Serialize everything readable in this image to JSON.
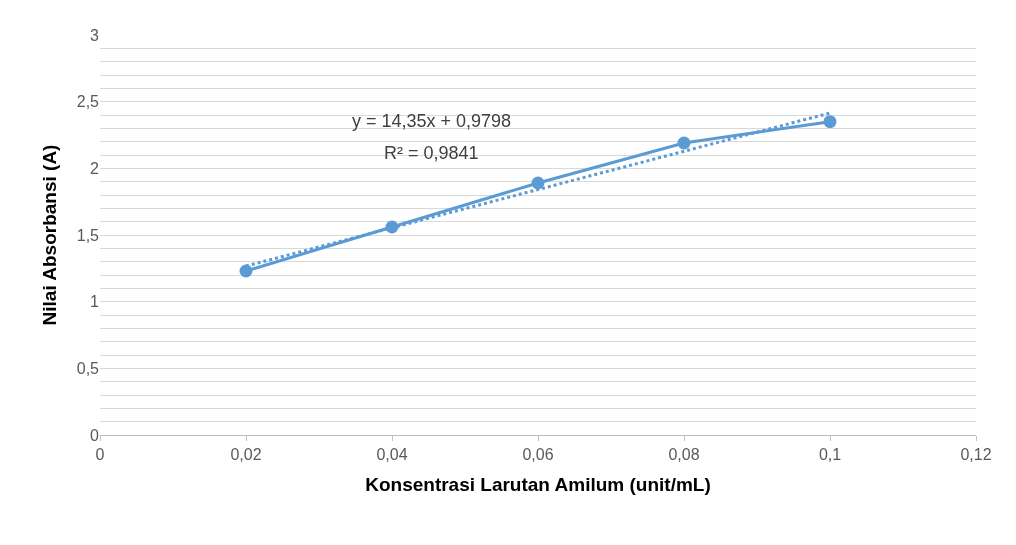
{
  "chart_data": {
    "type": "line",
    "xlabel": "Konsentrasi Larutan Amilum (unit/mL)",
    "ylabel": "Nilai Absorbansi (A)",
    "x": [
      0.02,
      0.04,
      0.06,
      0.08,
      0.1
    ],
    "series": [
      {
        "color": "#5b9bd5",
        "values": [
          1.23,
          1.56,
          1.89,
          2.19,
          2.35
        ],
        "marker": "circle",
        "line_style": "solid"
      },
      {
        "type": "line",
        "color": "#5b9bd5",
        "x": [
          0.02,
          0.1
        ],
        "values": [
          1.267,
          2.415
        ],
        "marker": "none",
        "line_style": "dotted"
      }
    ],
    "xlim": [
      0,
      0.12
    ],
    "xticks": [
      0,
      {
        "value": 0.02,
        "label": "0,02"
      },
      {
        "value": 0.04,
        "label": "0,04"
      },
      {
        "value": 0.06,
        "label": "0,06"
      },
      {
        "value": 0.08,
        "label": "0,08"
      },
      {
        "value": 0.1,
        "label": "0,1"
      },
      {
        "value": 0.12,
        "label": "0,12"
      }
    ],
    "ylim": [
      0,
      3
    ],
    "yticks": [
      0,
      {
        "value": 0.1,
        "label": null
      },
      {
        "value": 0.2,
        "label": null
      },
      {
        "value": 0.3,
        "label": null
      },
      {
        "value": 0.4,
        "label": null
      },
      {
        "value": 0.5,
        "label": "0,5"
      },
      {
        "value": 0.6,
        "label": null
      },
      {
        "value": 0.7,
        "label": null
      },
      {
        "value": 0.8,
        "label": null
      },
      {
        "value": 0.9,
        "label": null
      },
      1,
      {
        "value": 1.1,
        "label": null
      },
      {
        "value": 1.2,
        "label": null
      },
      {
        "value": 1.3,
        "label": null
      },
      {
        "value": 1.4,
        "label": null
      },
      {
        "value": 1.5,
        "label": "1,5"
      },
      {
        "value": 1.6,
        "label": null
      },
      {
        "value": 1.7,
        "label": null
      },
      {
        "value": 1.8,
        "label": null
      },
      {
        "value": 1.9,
        "label": null
      },
      2,
      {
        "value": 2.1,
        "label": null
      },
      {
        "value": 2.2,
        "label": null
      },
      {
        "value": 2.3,
        "label": null
      },
      {
        "value": 2.4,
        "label": null
      },
      {
        "value": 2.5,
        "label": "2,5"
      },
      {
        "value": 2.6,
        "label": null
      },
      {
        "value": 2.7,
        "label": null
      },
      {
        "value": 2.8,
        "label": null
      },
      {
        "value": 2.9,
        "label": null
      },
      3
    ],
    "grid": "y",
    "annotations": [
      "y = 14,35x + 0,9798",
      "R² = 0,9841"
    ]
  }
}
